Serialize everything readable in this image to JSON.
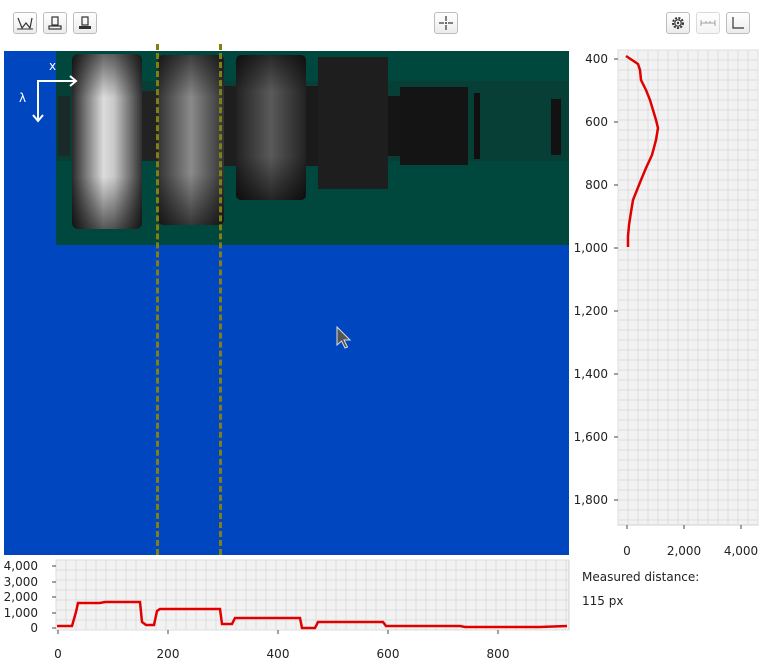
{
  "toolbar": {
    "left_buttons": [
      {
        "name": "spectral-scan-button",
        "icon": "spectrum-icon"
      },
      {
        "name": "device-view-button",
        "icon": "device-icon"
      },
      {
        "name": "device-view-filled-button",
        "icon": "device-filled-icon"
      }
    ],
    "center_button": {
      "name": "crosshair-button",
      "icon": "crosshair-icon"
    },
    "right_buttons": [
      {
        "name": "settings-button",
        "icon": "gear-icon"
      },
      {
        "name": "measure-distance-button",
        "icon": "ruler-icon",
        "disabled": true
      },
      {
        "name": "axes-toggle-button",
        "icon": "axes-icon"
      }
    ]
  },
  "main_view": {
    "background_color": "#0047bf",
    "axis_x_label": "x",
    "axis_y_label": "λ"
  },
  "cursor_lines_color": "#7f7f15",
  "right_profile": {
    "line_color": "#e00000",
    "y_ticks": [
      "400",
      "600",
      "800",
      "1,000",
      "1,200",
      "1,400",
      "1,600",
      "1,800"
    ],
    "x_ticks": [
      "0",
      "2,000",
      "4,000"
    ]
  },
  "bottom_profile": {
    "line_color": "#e00000",
    "y_ticks": [
      "4,000",
      "3,000",
      "2,000",
      "1,000",
      "0"
    ],
    "x_ticks": [
      "0",
      "200",
      "400",
      "600",
      "800"
    ]
  },
  "measurement": {
    "label": "Measured distance:",
    "value": "115 px"
  }
}
